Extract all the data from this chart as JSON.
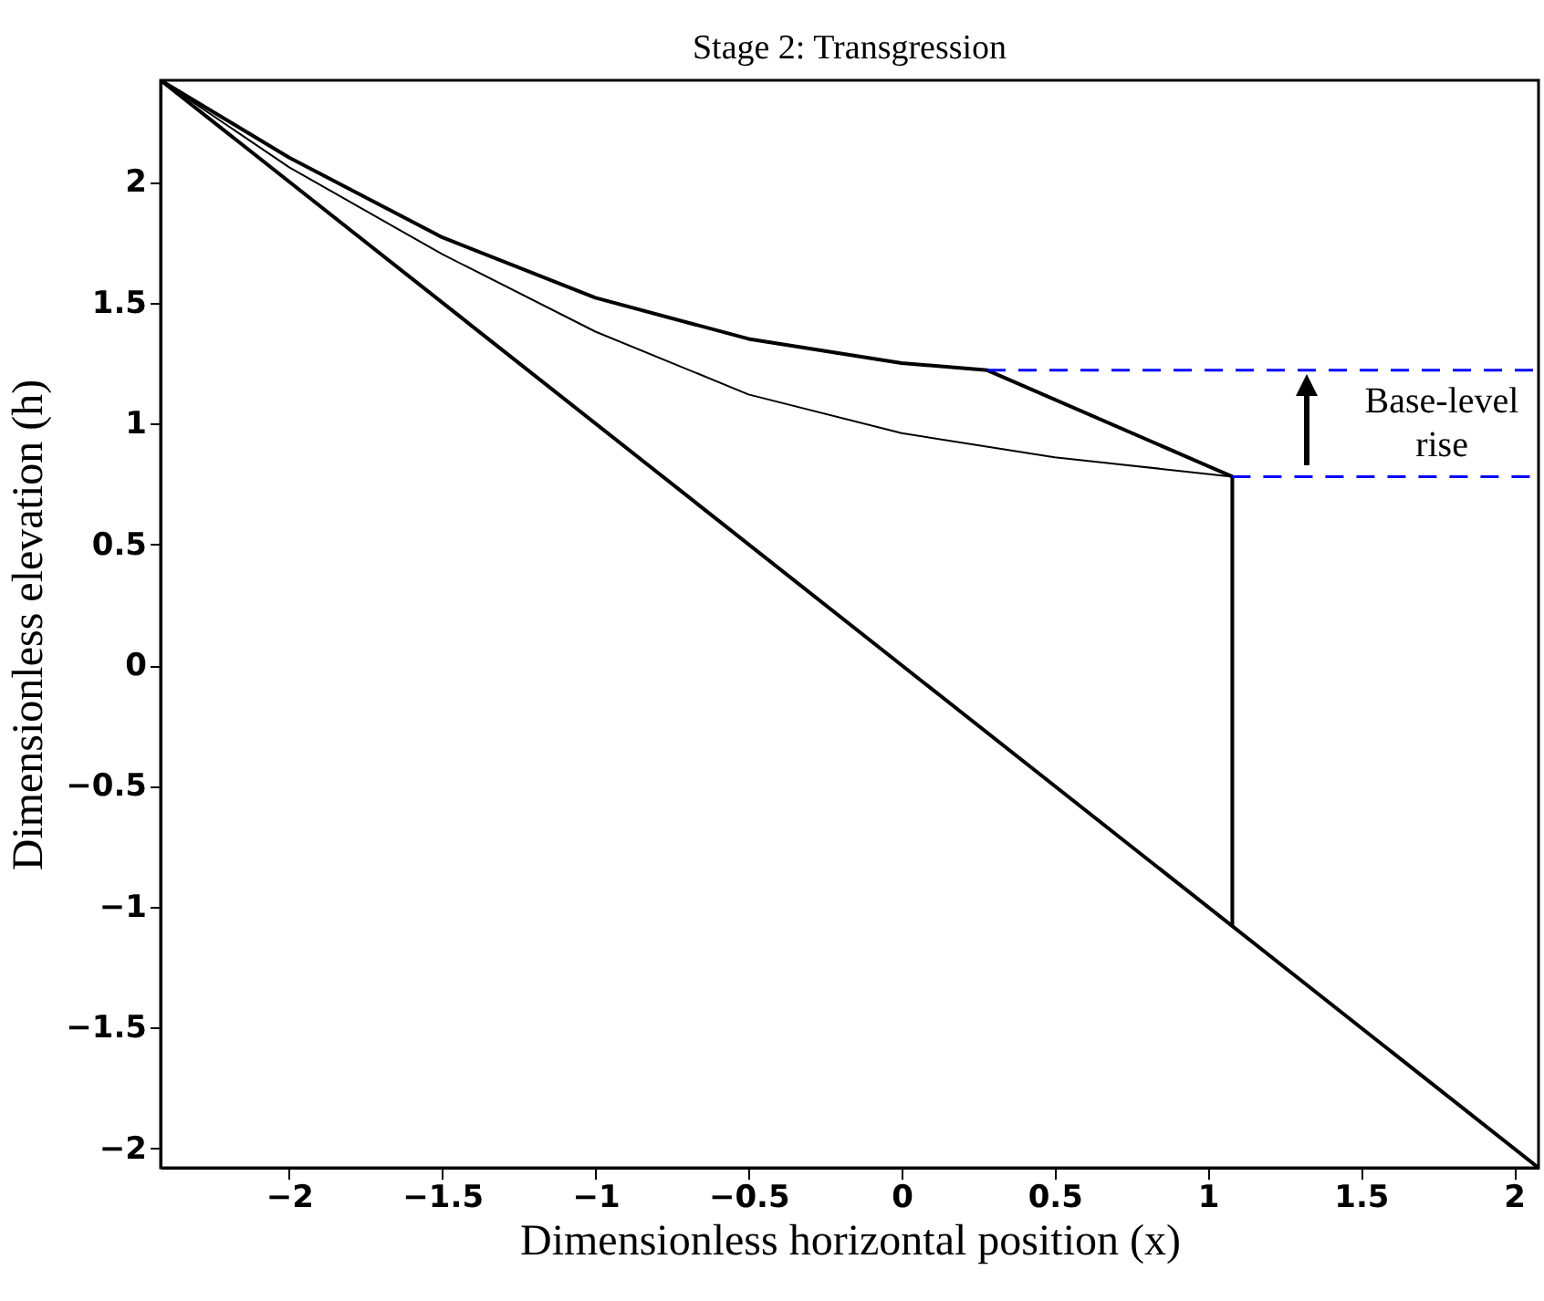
{
  "chart_data": {
    "type": "line",
    "title": "Stage 2: Transgression",
    "xlabel": "Dimensionless horizontal position (x)",
    "ylabel": "Dimensionless elevation (h)",
    "xlim": [
      -2.42,
      2.08
    ],
    "ylim": [
      -2.08,
      2.42
    ],
    "xticks": [
      -2,
      -1.5,
      -1,
      -0.5,
      0,
      0.5,
      1,
      1.5,
      2
    ],
    "yticks": [
      -2,
      -1.5,
      -1,
      -0.5,
      0,
      0.5,
      1,
      1.5,
      2
    ],
    "grid": false,
    "marker": "none",
    "series": [
      {
        "color": "#000000",
        "x": [
          -2.42,
          2.08
        ],
        "values": [
          2.42,
          -2.08
        ]
      },
      {
        "color": "#000000",
        "x": [
          -2.42,
          -2,
          -1.5,
          -1,
          -0.5,
          0,
          0.28,
          1.08,
          1.08
        ],
        "values": [
          2.42,
          2.1,
          1.77,
          1.52,
          1.35,
          1.25,
          1.22,
          0.78,
          -1.08
        ]
      },
      {
        "color": "#000000",
        "x": [
          -2.42,
          -2,
          -1.5,
          -1,
          -0.5,
          0,
          0.5,
          1.08
        ],
        "values": [
          2.42,
          2.06,
          1.7,
          1.38,
          1.12,
          0.96,
          0.86,
          0.78
        ]
      },
      {
        "color": "#0000ff",
        "line_style": "dashed",
        "x": [
          0.28,
          2.08
        ],
        "values": [
          1.22,
          1.22
        ]
      },
      {
        "color": "#0000ff",
        "line_style": "dashed",
        "x": [
          1.08,
          2.08
        ],
        "values": [
          0.78,
          0.78
        ]
      }
    ],
    "annotations": [
      "Base-level rise"
    ]
  }
}
